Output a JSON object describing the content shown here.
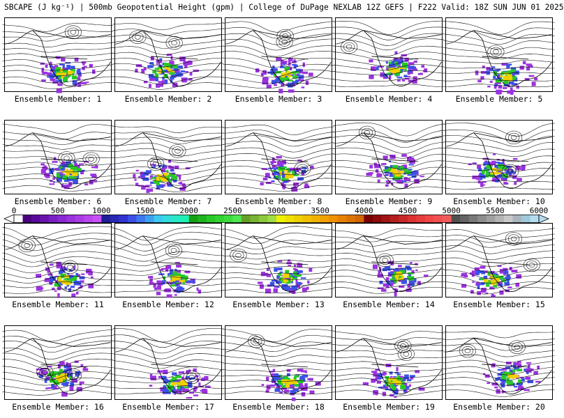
{
  "header": {
    "title": "SBCAPE (J kg⁻¹) | 500mb Geopotential Height (gpm) | College of DuPage NEXLAB 12Z GEFS | F222 Valid: 18Z SUN JUN 01 2025"
  },
  "panel_label_prefix": "Ensemble Member: ",
  "members": [
    {
      "label": "Ensemble Member: 1"
    },
    {
      "label": "Ensemble Member: 2"
    },
    {
      "label": "Ensemble Member: 3"
    },
    {
      "label": "Ensemble Member: 4"
    },
    {
      "label": "Ensemble Member: 5"
    },
    {
      "label": "Ensemble Member: 6"
    },
    {
      "label": "Ensemble Member: 7"
    },
    {
      "label": "Ensemble Member: 8"
    },
    {
      "label": "Ensemble Member: 9"
    },
    {
      "label": "Ensemble Member: 10"
    },
    {
      "label": "Ensemble Member: 11"
    },
    {
      "label": "Ensemble Member: 12"
    },
    {
      "label": "Ensemble Member: 13"
    },
    {
      "label": "Ensemble Member: 14"
    },
    {
      "label": "Ensemble Member: 15"
    },
    {
      "label": "Ensemble Member: 16"
    },
    {
      "label": "Ensemble Member: 17"
    },
    {
      "label": "Ensemble Member: 18"
    },
    {
      "label": "Ensemble Member: 19"
    },
    {
      "label": "Ensemble Member: 20"
    }
  ],
  "colorbar": {
    "min": 0,
    "max": 6000,
    "step": 100,
    "tick_labels": [
      "0",
      "500",
      "1000",
      "1500",
      "2000",
      "2500",
      "3000",
      "3500",
      "4000",
      "4500",
      "5000",
      "5500",
      "6000"
    ],
    "colors": [
      "#ffffff",
      "#4b0082",
      "#5a0a9a",
      "#6a14b0",
      "#7a1ec6",
      "#8a28d4",
      "#9a32de",
      "#aa3ce6",
      "#ba46ee",
      "#ca50f6",
      "#1e1e96",
      "#2828b4",
      "#3232d2",
      "#3c50e6",
      "#3c78f0",
      "#3ca0f0",
      "#3cc8f0",
      "#32dcdc",
      "#28e6c8",
      "#1ef0b4",
      "#14a014",
      "#1eb41e",
      "#28c828",
      "#32d232",
      "#3cdc3c",
      "#50e650",
      "#64a028",
      "#78b432",
      "#8cc83c",
      "#a0dc46",
      "#f0f000",
      "#f0e000",
      "#f0d000",
      "#f0c000",
      "#f0b000",
      "#f0a000",
      "#f09000",
      "#e68200",
      "#dc7400",
      "#d26600",
      "#780000",
      "#8c0a0a",
      "#a01414",
      "#b41e1e",
      "#c82828",
      "#dc3232",
      "#e63c3c",
      "#f04646",
      "#f05050",
      "#f05a5a",
      "#505050",
      "#646464",
      "#787878",
      "#8c8c8c",
      "#a0a0a0",
      "#b4b4b4",
      "#c8c8c8",
      "#aab4be",
      "#a0c8dc",
      "#b4dcf0"
    ]
  }
}
